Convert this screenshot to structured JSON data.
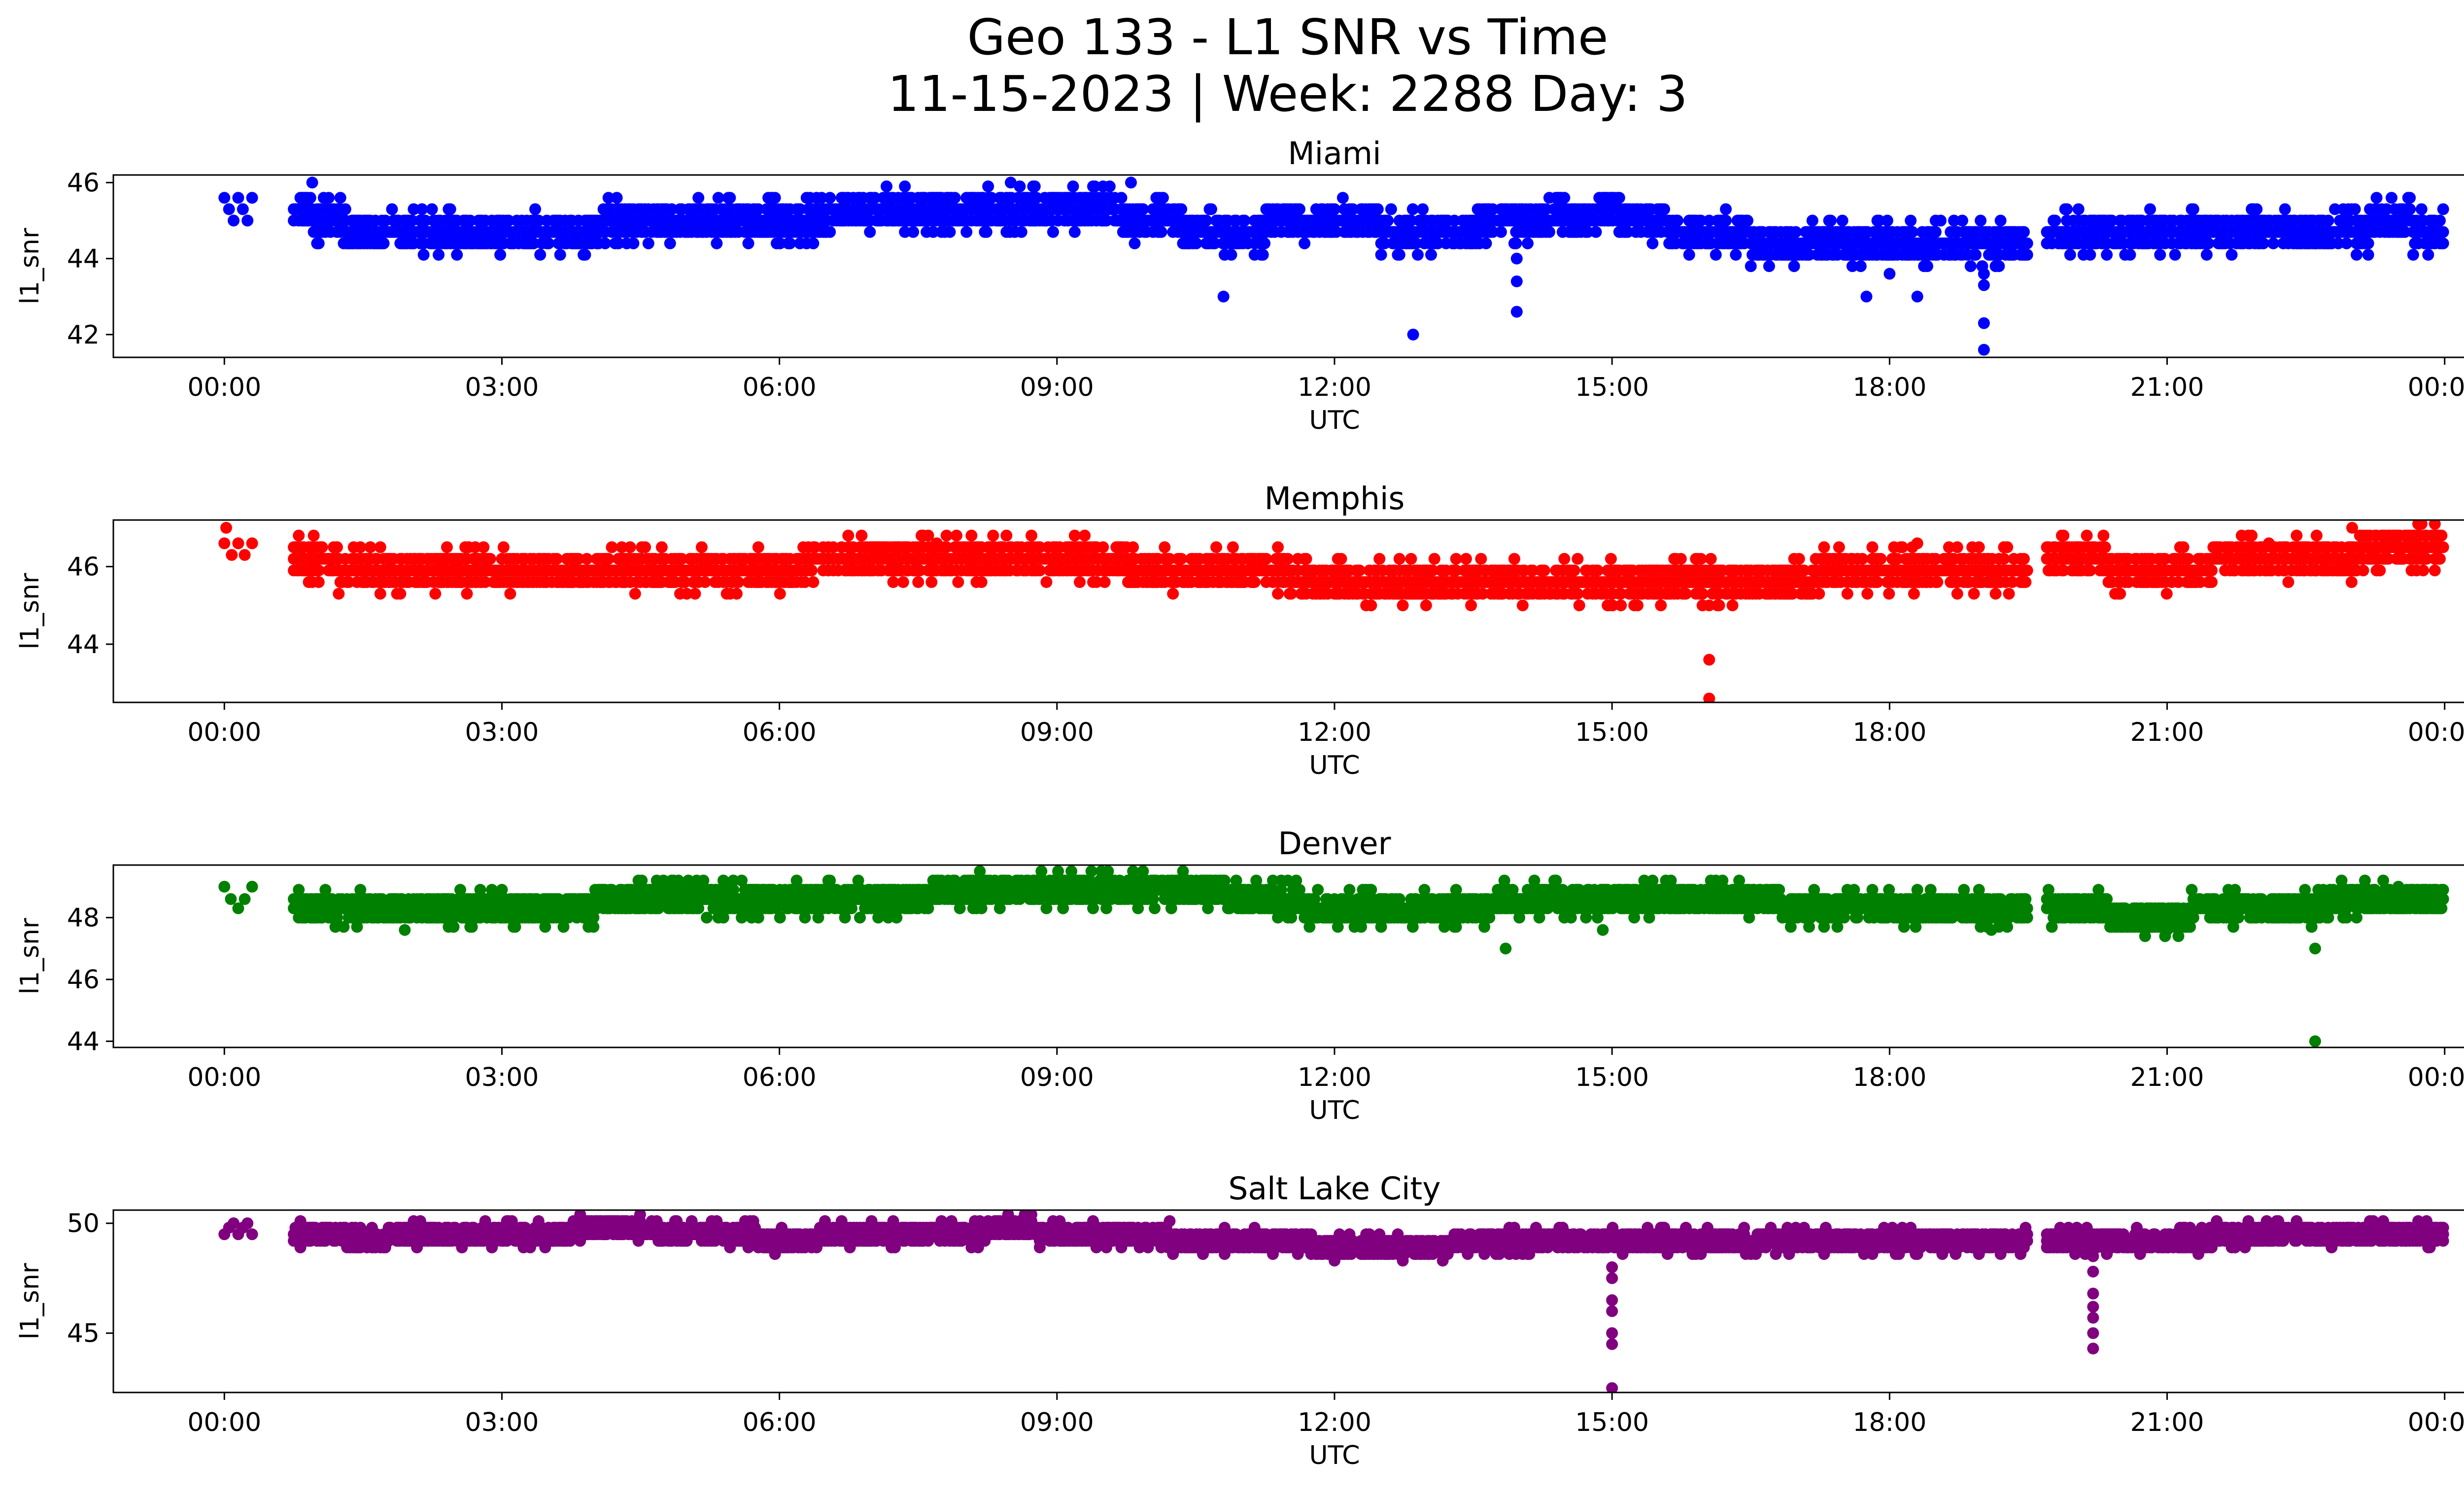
{
  "chart_data": {
    "type": "scatter",
    "title_line1": "Geo 133 - L1 SNR vs Time",
    "title_line2": "11-15-2023 | Week: 2288 Day: 3",
    "x_tick_labels": [
      "00:00",
      "03:00",
      "06:00",
      "09:00",
      "12:00",
      "15:00",
      "18:00",
      "21:00",
      "00:00"
    ],
    "x_tick_hours": [
      0,
      3,
      6,
      9,
      12,
      15,
      18,
      21,
      24
    ],
    "xlim_hours": [
      -1.2,
      25.2
    ],
    "xlabel": "UTC",
    "ylabel": "l1_snr",
    "panels": [
      {
        "title": "Miami",
        "color": "#0000ff",
        "ylim": [
          41.4,
          46.2
        ],
        "yticks": [
          42,
          44,
          46
        ],
        "ytick_labels": [
          "42",
          "44",
          "46"
        ],
        "segments": [
          {
            "x": [
              0.0,
              0.3
            ],
            "points": [
              [
                0.0,
                45.6
              ],
              [
                0.05,
                45.3
              ],
              [
                0.1,
                45.0
              ],
              [
                0.15,
                45.6
              ],
              [
                0.2,
                45.3
              ],
              [
                0.25,
                45.0
              ],
              [
                0.3,
                45.6
              ]
            ]
          },
          {
            "x": [
              0.75,
              19.5
            ],
            "profile": [
              [
                0.75,
                45.3
              ],
              [
                1.5,
                44.7
              ],
              [
                3.0,
                44.7
              ],
              [
                4.5,
                44.9
              ],
              [
                6.0,
                45.0
              ],
              [
                7.0,
                45.3
              ],
              [
                8.5,
                45.4
              ],
              [
                9.5,
                45.2
              ],
              [
                10.5,
                44.8
              ],
              [
                12.0,
                44.9
              ],
              [
                13.0,
                44.8
              ],
              [
                14.0,
                44.9
              ],
              [
                15.0,
                45.2
              ],
              [
                16.0,
                44.6
              ],
              [
                17.0,
                44.5
              ],
              [
                18.0,
                44.4
              ],
              [
                19.0,
                44.3
              ],
              [
                19.5,
                44.4
              ]
            ]
          },
          {
            "x": [
              19.7,
              24.0
            ],
            "profile": [
              [
                19.7,
                44.6
              ],
              [
                21.0,
                44.6
              ],
              [
                22.0,
                44.6
              ],
              [
                22.8,
                44.7
              ],
              [
                23.3,
                44.9
              ],
              [
                24.0,
                44.8
              ]
            ]
          }
        ],
        "outliers": [
          [
            0.95,
            46.0
          ],
          [
            8.5,
            46.0
          ],
          [
            9.8,
            46.0
          ],
          [
            10.8,
            43.0
          ],
          [
            12.85,
            42.0
          ],
          [
            13.97,
            44.0
          ],
          [
            13.97,
            43.4
          ],
          [
            13.97,
            42.6
          ],
          [
            17.75,
            43.0
          ],
          [
            18.0,
            43.6
          ],
          [
            18.3,
            43.0
          ],
          [
            19.02,
            43.6
          ],
          [
            19.02,
            43.3
          ],
          [
            19.02,
            42.3
          ],
          [
            19.02,
            41.6
          ]
        ]
      },
      {
        "title": "Memphis",
        "color": "#ff0000",
        "ylim": [
          42.5,
          47.2
        ],
        "yticks": [
          44,
          46
        ],
        "ytick_labels": [
          "44",
          "46"
        ],
        "segments": [
          {
            "x": [
              0.0,
              0.3
            ],
            "points": [
              [
                0.0,
                46.6
              ],
              [
                0.08,
                46.3
              ],
              [
                0.15,
                46.6
              ],
              [
                0.22,
                46.3
              ],
              [
                0.3,
                46.6
              ]
            ]
          },
          {
            "x": [
              0.75,
              19.5
            ],
            "profile": [
              [
                0.75,
                46.3
              ],
              [
                1.5,
                45.9
              ],
              [
                3.0,
                46.0
              ],
              [
                5.0,
                46.0
              ],
              [
                7.5,
                46.1
              ],
              [
                9.0,
                46.1
              ],
              [
                10.5,
                46.0
              ],
              [
                11.0,
                45.8
              ],
              [
                12.0,
                45.7
              ],
              [
                13.0,
                45.6
              ],
              [
                14.5,
                45.7
              ],
              [
                16.0,
                45.6
              ],
              [
                17.0,
                45.7
              ],
              [
                18.0,
                45.9
              ],
              [
                19.5,
                46.0
              ]
            ]
          },
          {
            "x": [
              19.7,
              24.0
            ],
            "profile": [
              [
                19.7,
                46.1
              ],
              [
                21.0,
                46.0
              ],
              [
                22.0,
                46.1
              ],
              [
                22.6,
                46.3
              ],
              [
                23.5,
                46.4
              ],
              [
                24.0,
                46.4
              ]
            ]
          }
        ],
        "outliers": [
          [
            0.02,
            47.0
          ],
          [
            7.7,
            46.6
          ],
          [
            16.05,
            45.0
          ],
          [
            16.05,
            43.6
          ],
          [
            16.05,
            42.6
          ],
          [
            18.3,
            46.6
          ],
          [
            22.1,
            46.6
          ],
          [
            23.0,
            47.0
          ]
        ]
      },
      {
        "title": "Denver",
        "color": "#008000",
        "ylim": [
          43.8,
          49.7
        ],
        "yticks": [
          44,
          46,
          48
        ],
        "ytick_labels": [
          "44",
          "46",
          "48"
        ],
        "segments": [
          {
            "x": [
              0.0,
              0.3
            ],
            "points": [
              [
                0.0,
                49.0
              ],
              [
                0.07,
                48.6
              ],
              [
                0.15,
                48.3
              ],
              [
                0.22,
                48.6
              ],
              [
                0.3,
                49.0
              ]
            ]
          },
          {
            "x": [
              0.75,
              19.5
            ],
            "profile": [
              [
                0.75,
                48.4
              ],
              [
                1.5,
                48.2
              ],
              [
                3.0,
                48.4
              ],
              [
                5.0,
                48.5
              ],
              [
                7.3,
                48.6
              ],
              [
                8.0,
                48.9
              ],
              [
                9.0,
                49.0
              ],
              [
                10.0,
                49.0
              ],
              [
                11.0,
                48.7
              ],
              [
                12.0,
                48.3
              ],
              [
                13.0,
                48.3
              ],
              [
                14.0,
                48.5
              ],
              [
                15.0,
                48.7
              ],
              [
                16.0,
                48.7
              ],
              [
                17.0,
                48.4
              ],
              [
                18.0,
                48.3
              ],
              [
                19.5,
                48.3
              ]
            ]
          },
          {
            "x": [
              19.7,
              24.0
            ],
            "profile": [
              [
                19.7,
                48.2
              ],
              [
                21.0,
                48.1
              ],
              [
                22.0,
                48.3
              ],
              [
                23.0,
                48.5
              ],
              [
                24.0,
                48.5
              ]
            ]
          }
        ],
        "outliers": [
          [
            1.95,
            47.6
          ],
          [
            9.5,
            49.3
          ],
          [
            13.85,
            47.0
          ],
          [
            14.9,
            47.6
          ],
          [
            19.1,
            47.6
          ],
          [
            21.0,
            47.6
          ],
          [
            22.6,
            47.0
          ],
          [
            22.6,
            44.0
          ],
          [
            23.5,
            49.0
          ]
        ]
      },
      {
        "title": "Salt Lake City",
        "color": "#800080",
        "ylim": [
          42.3,
          50.6
        ],
        "yticks": [
          45,
          50
        ],
        "ytick_labels": [
          "45",
          "50"
        ],
        "segments": [
          {
            "x": [
              0.0,
              0.3
            ],
            "points": [
              [
                0.0,
                49.5
              ],
              [
                0.05,
                49.8
              ],
              [
                0.1,
                50.0
              ],
              [
                0.15,
                49.5
              ],
              [
                0.2,
                49.8
              ],
              [
                0.25,
                50.0
              ],
              [
                0.3,
                49.5
              ]
            ]
          },
          {
            "x": [
              0.75,
              19.5
            ],
            "profile": [
              [
                0.75,
                49.5
              ],
              [
                1.5,
                49.3
              ],
              [
                3.0,
                49.6
              ],
              [
                4.5,
                49.7
              ],
              [
                6.0,
                49.3
              ],
              [
                7.5,
                49.5
              ],
              [
                8.5,
                49.7
              ],
              [
                9.5,
                49.5
              ],
              [
                11.0,
                49.2
              ],
              [
                12.0,
                49.0
              ],
              [
                13.0,
                49.0
              ],
              [
                14.0,
                49.2
              ],
              [
                15.0,
                49.1
              ],
              [
                16.0,
                49.2
              ],
              [
                17.0,
                49.3
              ],
              [
                18.0,
                49.3
              ],
              [
                19.5,
                49.3
              ]
            ]
          },
          {
            "x": [
              19.7,
              24.0
            ],
            "profile": [
              [
                19.7,
                49.3
              ],
              [
                21.0,
                49.3
              ],
              [
                22.0,
                49.4
              ],
              [
                23.0,
                49.5
              ],
              [
                24.0,
                49.5
              ]
            ]
          }
        ],
        "outliers": [
          [
            15.0,
            48.0
          ],
          [
            15.0,
            47.5
          ],
          [
            15.0,
            46.5
          ],
          [
            15.0,
            46.0
          ],
          [
            15.0,
            45.0
          ],
          [
            15.0,
            44.5
          ],
          [
            15.0,
            42.5
          ],
          [
            20.2,
            48.5
          ],
          [
            20.2,
            47.8
          ],
          [
            20.2,
            46.8
          ],
          [
            20.2,
            46.2
          ],
          [
            20.2,
            45.7
          ],
          [
            20.2,
            45.0
          ],
          [
            20.2,
            44.3
          ]
        ]
      }
    ]
  }
}
